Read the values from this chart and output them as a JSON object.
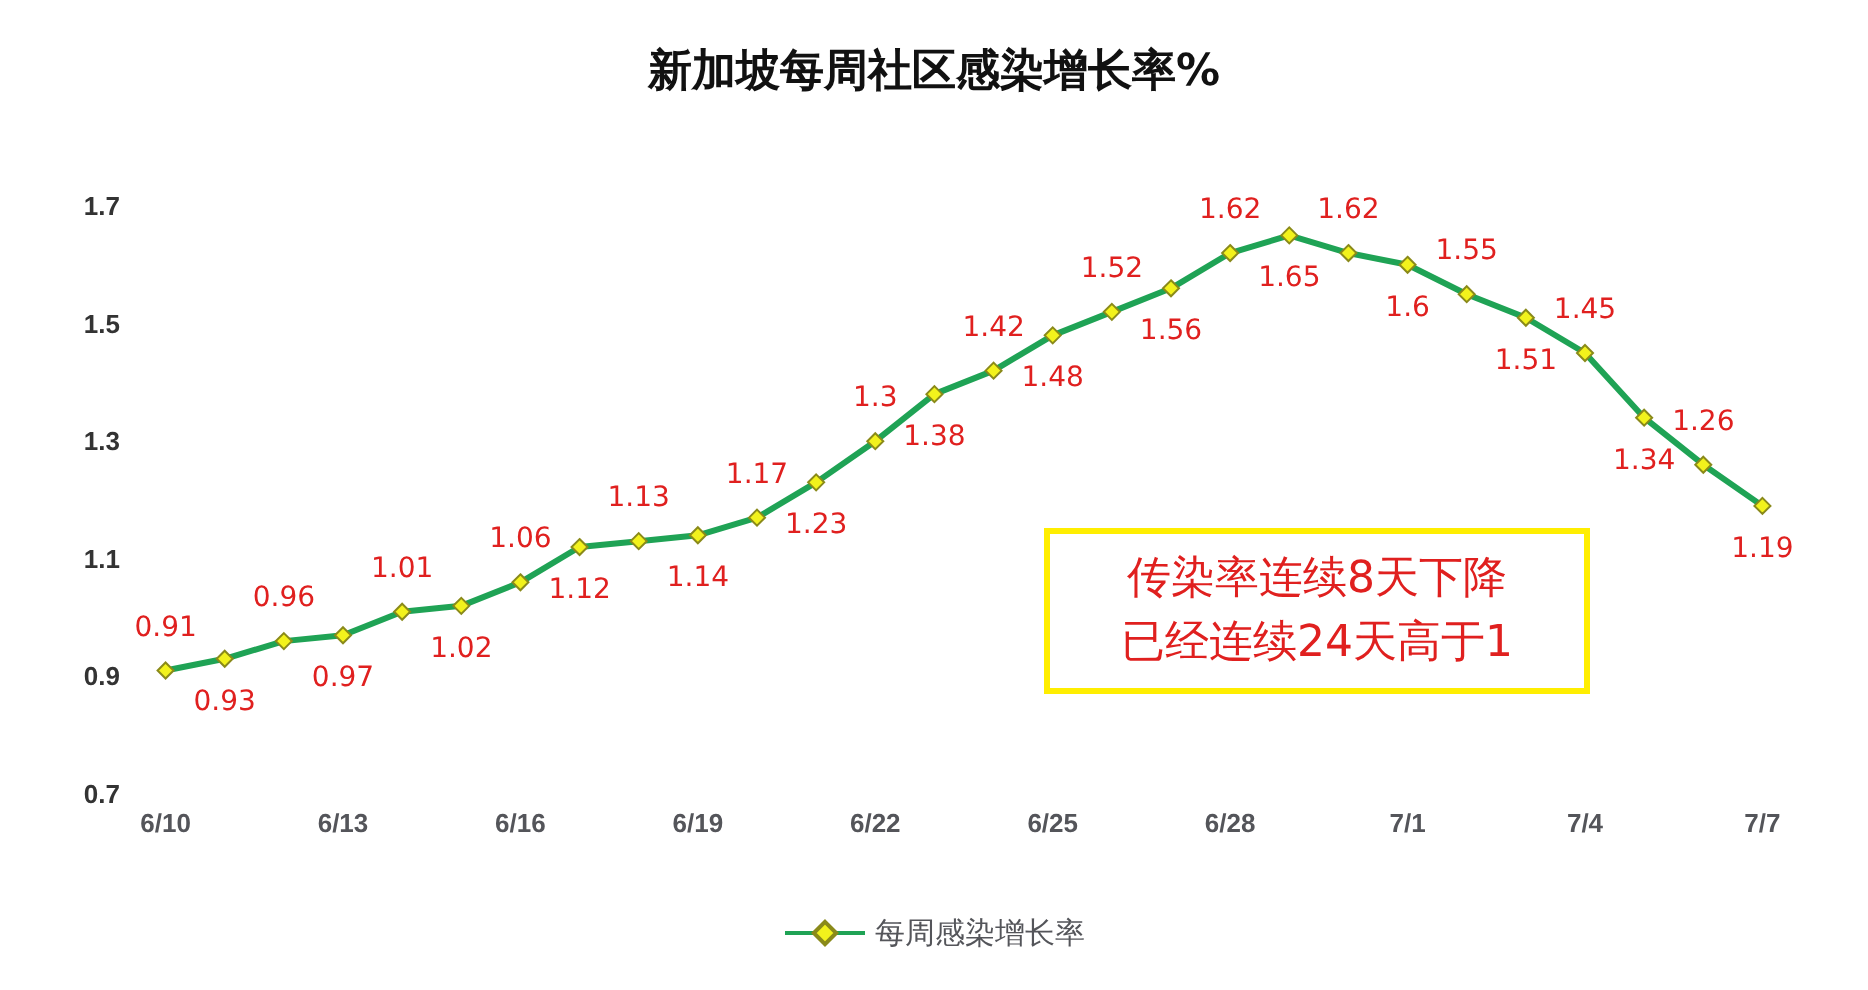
{
  "chart_data": {
    "type": "line",
    "title": "新加坡每周社区感染增长率%",
    "categories": [
      "6/10",
      null,
      null,
      "6/13",
      null,
      null,
      "6/16",
      null,
      null,
      "6/19",
      null,
      null,
      "6/22",
      null,
      null,
      "6/25",
      null,
      null,
      "6/28",
      null,
      null,
      "7/1",
      null,
      null,
      "7/4",
      null,
      null,
      "7/7"
    ],
    "series": [
      {
        "name": "每周感染增长率",
        "color": "#1fa355",
        "values": [
          0.91,
          0.93,
          0.96,
          0.97,
          1.01,
          1.02,
          1.06,
          1.12,
          1.13,
          1.14,
          1.17,
          1.23,
          1.3,
          1.38,
          1.42,
          1.48,
          1.52,
          1.56,
          1.62,
          1.65,
          1.62,
          1.6,
          1.55,
          1.51,
          1.45,
          1.34,
          1.26,
          1.19
        ]
      }
    ],
    "ylim": [
      0.7,
      1.7
    ],
    "yticks": [
      0.7,
      0.9,
      1.1,
      1.3,
      1.5,
      1.7
    ],
    "data_labels": true,
    "marker": "diamond",
    "legend": "bottom",
    "grid": false,
    "annotations": [
      "传染率连续8天下降",
      "已经连续24天高于1"
    ]
  }
}
